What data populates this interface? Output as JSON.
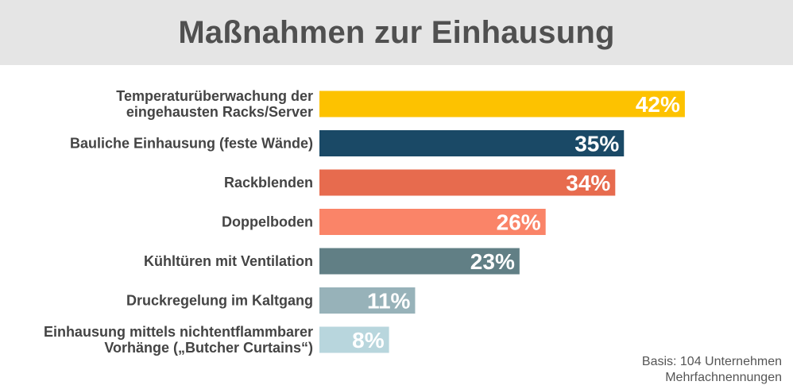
{
  "header": {
    "title": "Maßnahmen zur Einhausung"
  },
  "footnote": {
    "line1": "Basis: 104 Unternehmen",
    "line2": "Mehrfachnennungen"
  },
  "chart_data": {
    "type": "bar",
    "orientation": "horizontal",
    "title": "Maßnahmen zur Einhausung",
    "xlabel": "",
    "ylabel": "",
    "xlim": [
      0,
      50
    ],
    "grid": false,
    "unit": "%",
    "categories": [
      [
        "Temperaturüberwachung der",
        "eingehausten Racks/Server"
      ],
      [
        "Bauliche Einhausung (feste Wände)"
      ],
      [
        "Rackblenden"
      ],
      [
        "Doppelboden"
      ],
      [
        "Kühltüren mit Ventilation"
      ],
      [
        "Druckregelung im Kaltgang"
      ],
      [
        "Einhausung mittels nichtentflammbarer",
        "Vorhänge („Butcher Curtains“)"
      ]
    ],
    "values": [
      42,
      35,
      34,
      26,
      23,
      11,
      8
    ],
    "value_labels": [
      "42%",
      "35%",
      "34%",
      "26%",
      "23%",
      "11%",
      "8%"
    ],
    "colors": [
      "#fdc200",
      "#1a4966",
      "#e76b4e",
      "#fa8468",
      "#617f85",
      "#97b2b9",
      "#b8d6dd"
    ]
  }
}
